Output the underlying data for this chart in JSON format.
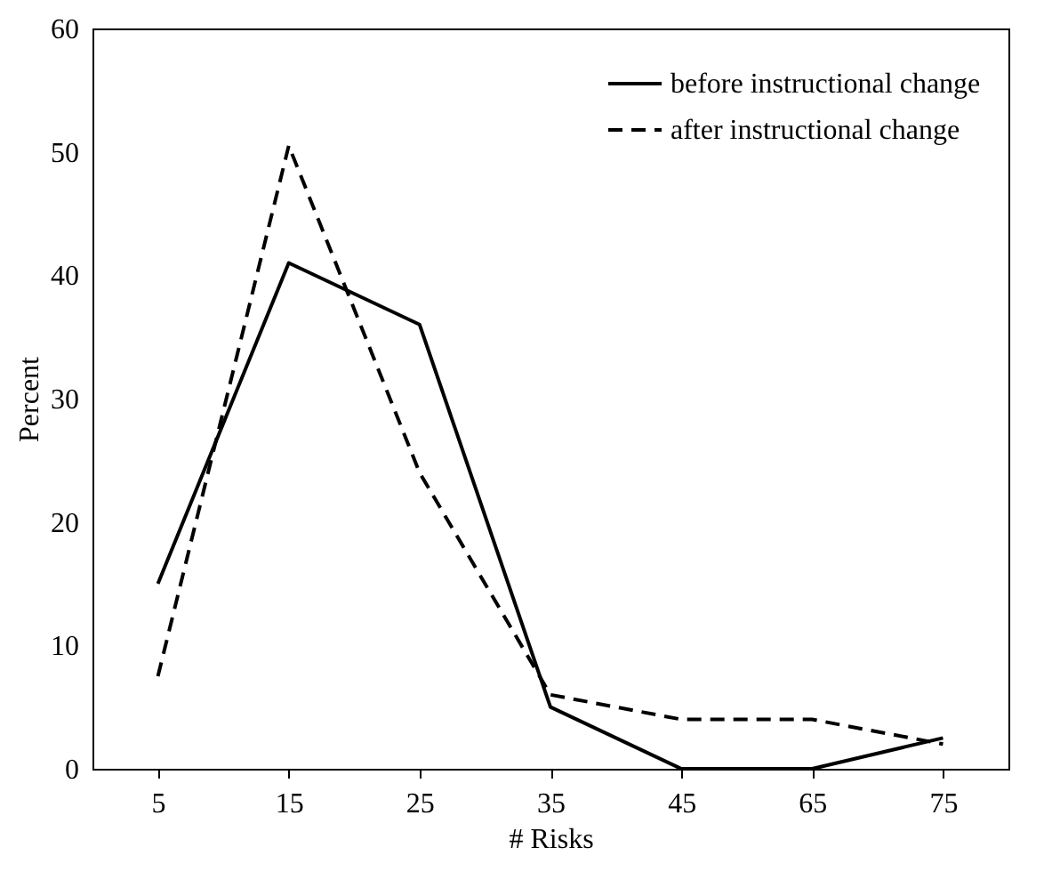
{
  "chart_data": {
    "type": "line",
    "xlabel": "# Risks",
    "ylabel": "Percent",
    "categories": [
      "5",
      "15",
      "25",
      "35",
      "45",
      "65",
      "75"
    ],
    "series": [
      {
        "name": "before instructional change",
        "color": "#000000",
        "line_style": "solid",
        "values": [
          15,
          41,
          36,
          5,
          0,
          0,
          2.5
        ]
      },
      {
        "name": "after instructional change",
        "color": "#000000",
        "line_style": "dashed",
        "values": [
          7.5,
          50.5,
          24,
          6,
          4,
          4,
          2
        ]
      }
    ],
    "ylim": [
      0,
      60
    ],
    "yticks": [
      0,
      10,
      20,
      30,
      40,
      50,
      60
    ],
    "grid": false,
    "legend": "top right",
    "marker": "none"
  }
}
